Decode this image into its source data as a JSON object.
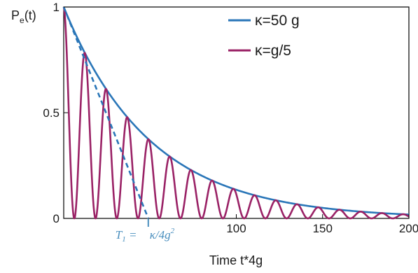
{
  "chart_data": {
    "type": "line",
    "xlabel": "Time t*4g",
    "ylabel_main": "P",
    "ylabel_sub": "e",
    "ylabel_tail": "(t)",
    "xlim": [
      0,
      200
    ],
    "ylim": [
      0,
      1
    ],
    "x_ticks": [
      {
        "value": 100,
        "label": "100"
      },
      {
        "value": 150,
        "label": "150"
      },
      {
        "value": 200,
        "label": "200"
      }
    ],
    "y_ticks": [
      {
        "value": 0,
        "label": "0"
      },
      {
        "value": 0.5,
        "label": "0.5"
      },
      {
        "value": 1,
        "label": "1"
      }
    ],
    "series": [
      {
        "name": "κ=50 g",
        "color": "#2a76b8",
        "style": "solid",
        "decay_rate": 0.02
      },
      {
        "name": "κ=g/5",
        "color": "#9a2266",
        "style": "solid",
        "decay_rate": 0.02,
        "oscillation_period": 12.3
      },
      {
        "color": "#2a76b8",
        "style": "dashed",
        "x": [
          0,
          49
        ],
        "y": [
          1,
          0
        ]
      }
    ],
    "annotation": {
      "text_t": "T",
      "text_sub": "1",
      "text_eq": " = ",
      "text_expr": "κ/4g",
      "text_sup": "2",
      "x": 49,
      "color": "#4a8fbe"
    },
    "legend_position": "top-right",
    "grid": false
  }
}
